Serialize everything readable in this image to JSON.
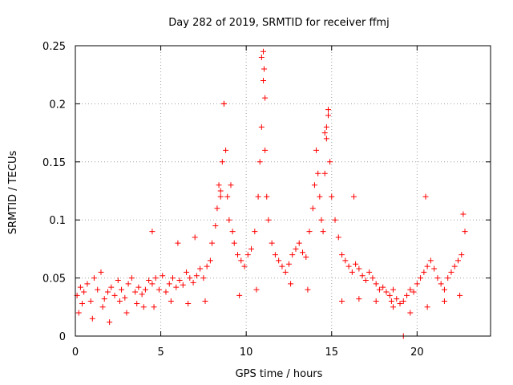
{
  "chart_data": {
    "type": "scatter",
    "title": "Day 282 of 2019, SRMTID for receiver ffmj",
    "xlabel": "GPS time / hours",
    "ylabel": "SRMTID / TECUs",
    "xlim": [
      0,
      24.3
    ],
    "ylim": [
      0,
      0.25
    ],
    "x_ticks": [
      {
        "value": 0,
        "label": "0"
      },
      {
        "value": 5,
        "label": "5"
      },
      {
        "value": 10,
        "label": "10"
      },
      {
        "value": 15,
        "label": "15"
      },
      {
        "value": 20,
        "label": "20"
      }
    ],
    "y_ticks": [
      {
        "value": 0,
        "label": "0"
      },
      {
        "value": 0.05,
        "label": "0.05"
      },
      {
        "value": 0.1,
        "label": "0.1"
      },
      {
        "value": 0.15,
        "label": "0.15"
      },
      {
        "value": 0.2,
        "label": "0.2"
      },
      {
        "value": 0.25,
        "label": "0.25"
      }
    ],
    "grid": true,
    "marker": "+",
    "color": "#ff0000",
    "series": [
      {
        "name": "SRMTID",
        "x": [
          0.1,
          0.3,
          0.5,
          0.7,
          0.9,
          1.1,
          1.3,
          1.5,
          1.7,
          1.9,
          2.1,
          2.3,
          2.5,
          2.7,
          2.9,
          3.1,
          3.3,
          3.5,
          3.7,
          3.9,
          4.1,
          4.3,
          4.5,
          4.7,
          4.9,
          5.1,
          5.3,
          5.5,
          5.7,
          5.9,
          6.1,
          6.3,
          6.5,
          6.7,
          6.9,
          7.1,
          7.3,
          7.5,
          7.7,
          7.9,
          8.0,
          8.2,
          8.3,
          8.4,
          8.5,
          8.6,
          8.7,
          8.8,
          8.9,
          9.0,
          9.1,
          9.2,
          9.3,
          9.5,
          9.7,
          9.9,
          10.1,
          10.3,
          10.5,
          10.7,
          10.8,
          10.9,
          11.0,
          11.1,
          11.2,
          11.3,
          11.5,
          11.7,
          11.9,
          12.1,
          12.3,
          12.5,
          12.7,
          12.9,
          13.1,
          13.3,
          13.5,
          13.7,
          13.9,
          14.0,
          14.1,
          14.2,
          14.3,
          14.4,
          14.5,
          14.6,
          14.7,
          14.8,
          14.9,
          15.0,
          15.2,
          15.4,
          15.6,
          15.8,
          16.0,
          16.2,
          16.4,
          16.6,
          16.8,
          17.0,
          17.2,
          17.4,
          17.6,
          17.8,
          18.0,
          18.2,
          18.4,
          18.6,
          18.8,
          19.0,
          19.2,
          19.4,
          19.6,
          19.8,
          20.0,
          20.2,
          20.4,
          20.6,
          20.8,
          21.0,
          21.2,
          21.4,
          21.6,
          21.8,
          22.0,
          22.2,
          22.4,
          22.6,
          22.8,
          0.2,
          1.0,
          2.0,
          3.0,
          4.0,
          4.5,
          6.0,
          7.0,
          8.5,
          8.7,
          10.9,
          11.0,
          11.05,
          11.1,
          14.6,
          14.7,
          14.8,
          16.3,
          18.5,
          19.2,
          20.5,
          22.7,
          0.4,
          1.6,
          2.6,
          3.6,
          4.6,
          5.6,
          6.6,
          7.6,
          9.6,
          10.6,
          12.6,
          13.6,
          15.6,
          16.6,
          17.6,
          18.6,
          19.6,
          20.6,
          21.6,
          22.5
        ],
        "y": [
          0.035,
          0.042,
          0.038,
          0.045,
          0.03,
          0.05,
          0.04,
          0.055,
          0.032,
          0.038,
          0.042,
          0.035,
          0.048,
          0.04,
          0.033,
          0.045,
          0.05,
          0.038,
          0.042,
          0.036,
          0.04,
          0.048,
          0.045,
          0.05,
          0.04,
          0.052,
          0.038,
          0.045,
          0.05,
          0.042,
          0.048,
          0.044,
          0.055,
          0.05,
          0.046,
          0.052,
          0.058,
          0.05,
          0.06,
          0.065,
          0.08,
          0.095,
          0.11,
          0.13,
          0.12,
          0.15,
          0.2,
          0.16,
          0.12,
          0.1,
          0.13,
          0.09,
          0.08,
          0.07,
          0.065,
          0.06,
          0.07,
          0.075,
          0.09,
          0.12,
          0.15,
          0.18,
          0.22,
          0.16,
          0.12,
          0.1,
          0.08,
          0.07,
          0.065,
          0.06,
          0.055,
          0.062,
          0.07,
          0.075,
          0.08,
          0.072,
          0.068,
          0.09,
          0.11,
          0.13,
          0.16,
          0.14,
          0.12,
          0.1,
          0.09,
          0.14,
          0.17,
          0.19,
          0.15,
          0.12,
          0.1,
          0.085,
          0.07,
          0.065,
          0.06,
          0.055,
          0.062,
          0.058,
          0.052,
          0.048,
          0.055,
          0.05,
          0.045,
          0.04,
          0.042,
          0.038,
          0.035,
          0.04,
          0.032,
          0.028,
          0.03,
          0.035,
          0.04,
          0.038,
          0.045,
          0.05,
          0.055,
          0.06,
          0.065,
          0.058,
          0.05,
          0.045,
          0.04,
          0.05,
          0.055,
          0.06,
          0.065,
          0.07,
          0.09,
          0.02,
          0.015,
          0.012,
          0.02,
          0.025,
          0.09,
          0.08,
          0.085,
          0.125,
          0.2,
          0.24,
          0.245,
          0.23,
          0.205,
          0.175,
          0.18,
          0.195,
          0.12,
          0.03,
          0.0,
          0.12,
          0.105,
          0.028,
          0.025,
          0.03,
          0.028,
          0.025,
          0.03,
          0.028,
          0.03,
          0.035,
          0.04,
          0.045,
          0.04,
          0.03,
          0.032,
          0.03,
          0.025,
          0.02,
          0.025,
          0.03,
          0.035
        ]
      }
    ]
  }
}
